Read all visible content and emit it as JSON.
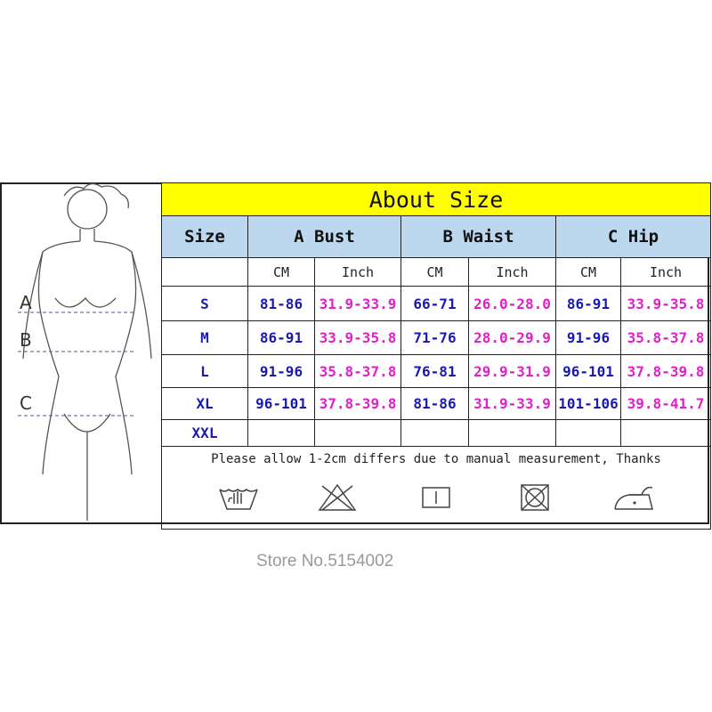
{
  "title": "About Size",
  "headers": {
    "size": "Size",
    "bust": "A Bust",
    "waist": "B Waist",
    "hip": "C Hip"
  },
  "units": [
    "CM",
    "Inch",
    "CM",
    "Inch",
    "CM",
    "Inch"
  ],
  "rows": [
    {
      "size": "S",
      "values": [
        "81-86",
        "31.9-33.9",
        "66-71",
        "26.0-28.0",
        "86-91",
        "33.9-35.8"
      ]
    },
    {
      "size": "M",
      "values": [
        "86-91",
        "33.9-35.8",
        "71-76",
        "28.0-29.9",
        "91-96",
        "35.8-37.8"
      ]
    },
    {
      "size": "L",
      "values": [
        "91-96",
        "35.8-37.8",
        "76-81",
        "29.9-31.9",
        "96-101",
        "37.8-39.8"
      ]
    },
    {
      "size": "XL",
      "values": [
        "96-101",
        "37.8-39.8",
        "81-86",
        "31.9-33.9",
        "101-106",
        "39.8-41.7"
      ]
    },
    {
      "size": "XXL",
      "values": [
        "",
        "",
        "",
        "",
        "",
        ""
      ]
    }
  ],
  "note": "Please allow 1-2cm differs due to manual measurement, Thanks",
  "care_icons": [
    "hand-wash-icon",
    "do-not-bleach-icon",
    "dry-flat-icon",
    "do-not-tumble-dry-icon",
    "iron-low-icon"
  ],
  "figure_labels": [
    "A",
    "B",
    "C"
  ],
  "watermark": "Store No.5154002",
  "colors": {
    "title_bg": "#ffff00",
    "header_bg": "#bdd7ee",
    "cm": "#1a1ab0",
    "inch": "#e020c8"
  }
}
